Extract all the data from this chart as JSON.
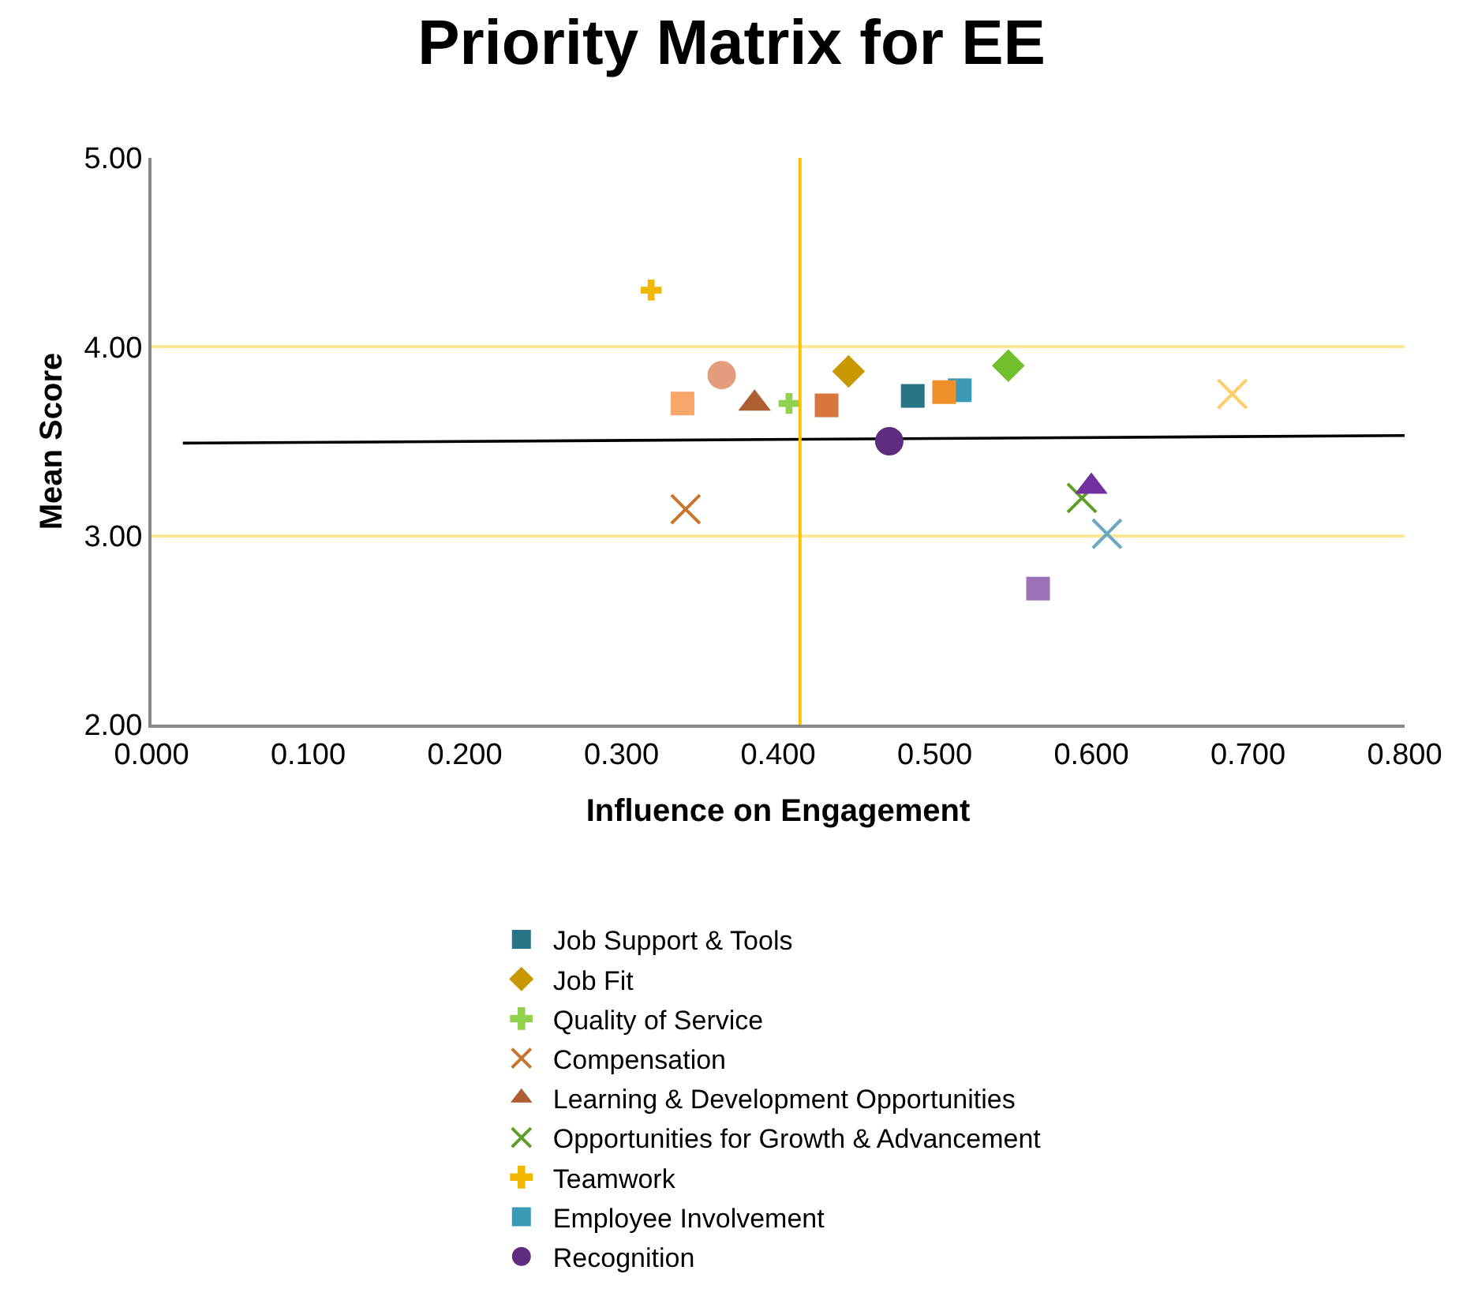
{
  "chart_data": {
    "type": "scatter",
    "title": "Priority Matrix for EE",
    "xlabel": "Influence on Engagement",
    "ylabel": "Mean Score",
    "xlim": [
      0,
      0.8
    ],
    "xticks": [
      {
        "value": 0,
        "label": "0.000"
      },
      {
        "value": 0.1,
        "label": "0.100"
      },
      {
        "value": 0.2,
        "label": "0.200"
      },
      {
        "value": 0.3,
        "label": "0.300"
      },
      {
        "value": 0.4,
        "label": "0.400"
      },
      {
        "value": 0.5,
        "label": "0.500"
      },
      {
        "value": 0.6,
        "label": "0.600"
      },
      {
        "value": 0.7,
        "label": "0.700"
      },
      {
        "value": 0.8,
        "label": "0.800"
      }
    ],
    "ylim": [
      2,
      5
    ],
    "yticks": [
      {
        "value": 2,
        "label": "2.00"
      },
      {
        "value": 3,
        "label": "3.00"
      },
      {
        "value": 4,
        "label": "4.00"
      },
      {
        "value": 5,
        "label": "5.00"
      }
    ],
    "grid": "y",
    "legend": "bottom",
    "ref_lines": [
      {
        "axis": "x",
        "value": 0.414,
        "color": "#ffc000"
      }
    ],
    "series": [
      {
        "type": "line",
        "color": "#000000",
        "x": [
          0.02,
          0.8
        ],
        "values": [
          3.49,
          3.53
        ],
        "marker": "none"
      },
      {
        "name": "Job Support & Tools",
        "color": "#277487",
        "marker": "square",
        "x": [
          0.486
        ],
        "values": [
          3.74
        ]
      },
      {
        "name": "Job Fit",
        "color": "#c89800",
        "marker": "diamond",
        "x": [
          0.445
        ],
        "values": [
          3.87
        ]
      },
      {
        "name": "Quality of Service",
        "color": "#92d050",
        "marker": "cross",
        "x": [
          0.407
        ],
        "values": [
          3.7
        ]
      },
      {
        "name": "Compensation",
        "color": "#c8742a",
        "marker": "x",
        "x": [
          0.341
        ],
        "values": [
          3.14
        ]
      },
      {
        "name": "Learning & Development Opportunities",
        "color": "#ad5f31",
        "marker": "triangle",
        "x": [
          0.385
        ],
        "values": [
          3.7
        ]
      },
      {
        "name": "Opportunities for Growth & Advancement",
        "color": "#5f9e27",
        "marker": "x",
        "x": [
          0.594
        ],
        "values": [
          3.2
        ]
      },
      {
        "name": "Teamwork",
        "color": "#f2b800",
        "marker": "cross",
        "x": [
          0.319
        ],
        "values": [
          4.3
        ]
      },
      {
        "name": "Employee Involvement",
        "color": "#3a9ab5",
        "marker": "square",
        "x": [
          0.516
        ],
        "values": [
          3.77
        ]
      },
      {
        "name": "Recognition",
        "color": "#5f2d7f",
        "marker": "circle",
        "x": [
          0.471
        ],
        "values": [
          3.5
        ]
      },
      {
        "color": "#f9a66b",
        "marker": "square",
        "x": [
          0.339
        ],
        "values": [
          3.7
        ]
      },
      {
        "color": "#e59c7c",
        "marker": "circle",
        "x": [
          0.364
        ],
        "values": [
          3.85
        ]
      },
      {
        "color": "#d7773f",
        "marker": "square",
        "x": [
          0.431
        ],
        "values": [
          3.69
        ]
      },
      {
        "color": "#f0902a",
        "marker": "square",
        "x": [
          0.506
        ],
        "values": [
          3.76
        ]
      },
      {
        "color": "#72bf2c",
        "marker": "diamond",
        "x": [
          0.547
        ],
        "values": [
          3.9
        ]
      },
      {
        "color": "#ffcc66",
        "marker": "x",
        "x": [
          0.69
        ],
        "values": [
          3.75
        ]
      },
      {
        "color": "#7030a0",
        "marker": "triangle",
        "x": [
          0.6
        ],
        "values": [
          3.26
        ]
      },
      {
        "color": "#6aa8c0",
        "marker": "x",
        "x": [
          0.61
        ],
        "values": [
          3.01
        ]
      },
      {
        "color": "#9a72b5",
        "marker": "square",
        "x": [
          0.566
        ],
        "values": [
          2.72
        ]
      }
    ]
  }
}
